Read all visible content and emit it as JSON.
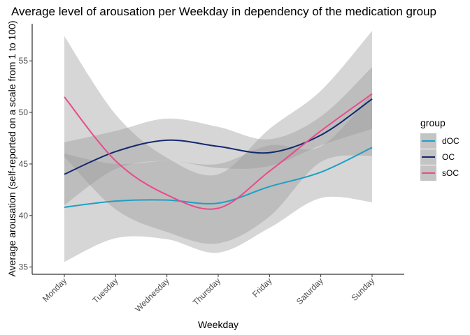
{
  "chart_data": {
    "type": "line",
    "title": "Average level of arousation per Weekday in dependency of the medication group",
    "xlabel": "Weekday",
    "ylabel": "Average arousation (self-reported on a scale from 1 to 100)",
    "categories": [
      "Monday",
      "Tuesday",
      "Wednesday",
      "Thursday",
      "Friday",
      "Saturday",
      "Sunday"
    ],
    "yticks": [
      35,
      40,
      45,
      50,
      55
    ],
    "ylim": [
      34.3,
      58.6
    ],
    "grid": false,
    "legend": {
      "title": "group",
      "position": "right"
    },
    "series": [
      {
        "name": "dOC",
        "color": "#1f9fc4",
        "values": [
          40.8,
          41.4,
          41.5,
          41.2,
          42.8,
          44.2,
          46.6
        ],
        "lower": [
          35.5,
          37.8,
          37.7,
          36.4,
          38.8,
          41.7,
          41.3
        ],
        "upper": [
          46.0,
          45.0,
          45.3,
          45.0,
          46.8,
          46.7,
          51.9
        ]
      },
      {
        "name": "OC",
        "color": "#14286e",
        "values": [
          44.0,
          46.2,
          47.3,
          46.7,
          46.1,
          47.8,
          51.3
        ],
        "lower": [
          41.0,
          44.5,
          45.3,
          44.6,
          44.8,
          46.8,
          48.4
        ],
        "upper": [
          47.1,
          48.2,
          49.4,
          48.6,
          47.4,
          49.6,
          54.4
        ]
      },
      {
        "name": "sOC",
        "color": "#e84c8a",
        "values": [
          51.5,
          45.3,
          42.0,
          40.7,
          44.3,
          48.2,
          51.8
        ],
        "lower": [
          45.7,
          40.6,
          38.4,
          37.3,
          39.9,
          45.2,
          45.8
        ],
        "upper": [
          57.4,
          49.8,
          45.6,
          44.0,
          48.4,
          52.1,
          57.9
        ]
      }
    ]
  }
}
